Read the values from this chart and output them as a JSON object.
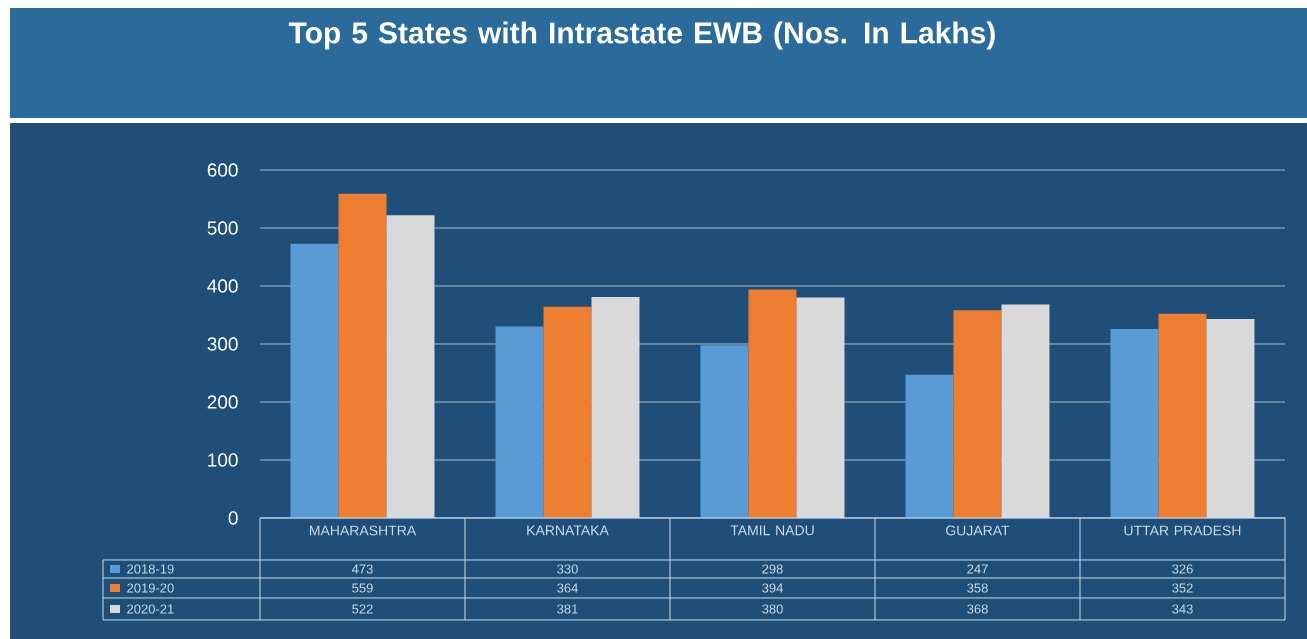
{
  "chart_data": {
    "type": "bar",
    "title": "Top 5  States with Intrastate EWB (Nos. In Lakhs)",
    "categories": [
      "MAHARASHTRA",
      "KARNATAKA",
      "TAMIL NADU",
      "GUJARAT",
      "UTTAR PRADESH"
    ],
    "series": [
      {
        "name": "2018-19",
        "color": "#5b9bd5",
        "values": [
          473,
          330,
          298,
          247,
          326
        ]
      },
      {
        "name": "2019-20",
        "color": "#ed7d31",
        "values": [
          559,
          364,
          394,
          358,
          352
        ]
      },
      {
        "name": "2020-21",
        "color": "#d9d9d9",
        "values": [
          522,
          381,
          380,
          368,
          343
        ]
      }
    ],
    "ylim": [
      0,
      600
    ],
    "yticks": [
      0,
      100,
      200,
      300,
      400,
      500,
      600
    ],
    "grid": "y",
    "legend": "bottom",
    "data_labels": true
  }
}
